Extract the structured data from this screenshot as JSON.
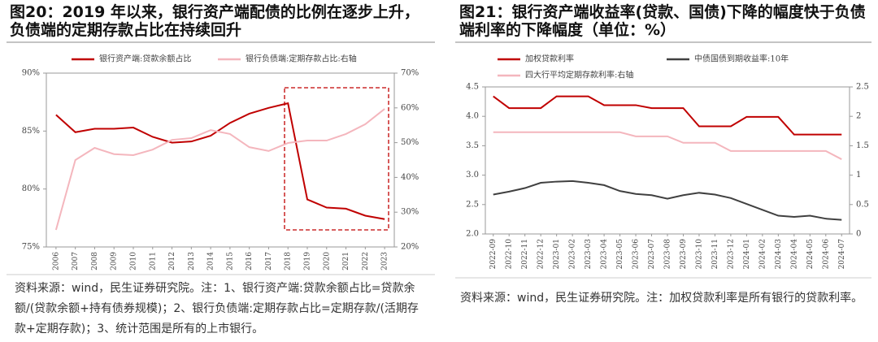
{
  "chart_data": [
    {
      "type": "line",
      "title": "图20：2019 年以来，银行资产端配债的比例在逐步上升，负债端的定期存款占比在持续回升",
      "source": "资料来源：wind，民生证券研究院。注：1、银行资产端:贷款余额占比=贷款余额/(贷款余额+持有债券规模)；2、银行负债端:定期存款占比=定期存款/(活期存款+定期存款)；3、统计范围是所有的上市银行。",
      "categories": [
        "2006",
        "2007",
        "2008",
        "2009",
        "2010",
        "2011",
        "2012",
        "2013",
        "2014",
        "2015",
        "2016",
        "2017",
        "2018",
        "2019",
        "2020",
        "2021",
        "2022",
        "2023"
      ],
      "series": [
        {
          "name": "银行资产端:贷款余额占比",
          "color": "#c00000",
          "values": [
            86.4,
            84.9,
            85.2,
            85.2,
            85.3,
            84.5,
            84.0,
            84.1,
            84.6,
            85.7,
            86.5,
            87.0,
            87.4,
            79.1,
            78.4,
            78.3,
            77.7,
            77.4
          ]
        },
        {
          "name": "银行负债端:定期存款占比:右轴",
          "color": "#f4b6bd",
          "axis": "y2",
          "values": [
            24.9,
            45.0,
            48.5,
            46.7,
            46.4,
            48.0,
            50.8,
            51.3,
            53.6,
            52.5,
            48.7,
            47.6,
            49.9,
            50.6,
            50.6,
            52.5,
            55.3,
            59.7
          ]
        }
      ],
      "ylim": [
        75,
        90
      ],
      "yticks": [
        {
          "value": 75,
          "label": "75%"
        },
        {
          "value": 80,
          "label": "80%"
        },
        {
          "value": 85,
          "label": "85%"
        },
        {
          "value": 90,
          "label": "90%"
        }
      ],
      "y2lim": [
        20,
        70
      ],
      "y2ticks": [
        {
          "value": 20,
          "label": "20%"
        },
        {
          "value": 30,
          "label": "30%"
        },
        {
          "value": 40,
          "label": "40%"
        },
        {
          "value": 50,
          "label": "50%"
        },
        {
          "value": 60,
          "label": "60%"
        },
        {
          "value": 70,
          "label": "70%"
        }
      ],
      "legend": "top"
    },
    {
      "type": "line",
      "title": "图21：银行资产端收益率(贷款、国债)下降的幅度快于负债端利率的下降幅度（单位：%）",
      "source": "资料来源：wind，民生证券研究院。注：加权贷款利率是所有银行的贷款利率。",
      "categories": [
        "2022-09",
        "2022-10",
        "2022-11",
        "2022-12",
        "2023-01",
        "2023-02",
        "2023-03",
        "2023-04",
        "2023-05",
        "2023-06",
        "2023-07",
        "2023-08",
        "2023-09",
        "2023-10",
        "2023-11",
        "2023-12",
        "2024-01",
        "2024-02",
        "2024-03",
        "2024-04",
        "2024-05",
        "2024-06",
        "2024-07"
      ],
      "series": [
        {
          "name": "加权贷款利率",
          "color": "#c00000",
          "values": [
            4.34,
            4.14,
            4.14,
            4.14,
            4.34,
            4.34,
            4.34,
            4.19,
            4.19,
            4.19,
            4.14,
            4.14,
            4.14,
            3.83,
            3.83,
            3.83,
            3.99,
            3.99,
            3.99,
            3.69,
            3.69,
            3.69,
            3.69
          ]
        },
        {
          "name": "中债国债到期收益率:10年",
          "color": "#404040",
          "values": [
            2.67,
            2.72,
            2.78,
            2.87,
            2.89,
            2.9,
            2.87,
            2.83,
            2.73,
            2.68,
            2.66,
            2.6,
            2.66,
            2.7,
            2.67,
            2.61,
            2.51,
            2.41,
            2.31,
            2.29,
            2.31,
            2.26,
            2.24
          ]
        },
        {
          "name": "四大行平均定期存款利率:右轴",
          "color": "#f4b6bd",
          "axis": "y2",
          "values": [
            1.73,
            1.73,
            1.73,
            1.73,
            1.73,
            1.73,
            1.73,
            1.73,
            1.73,
            1.66,
            1.66,
            1.66,
            1.55,
            1.55,
            1.55,
            1.41,
            1.41,
            1.41,
            1.41,
            1.41,
            1.41,
            1.41,
            1.27
          ]
        }
      ],
      "ylim": [
        2.0,
        4.5
      ],
      "yticks": [
        {
          "value": 2.0,
          "label": "2.0"
        },
        2.5,
        {
          "value": 3.0,
          "label": "3.0"
        },
        3.5,
        {
          "value": 4.0,
          "label": "4.0"
        },
        4.5
      ],
      "y2lim": [
        0,
        2.5
      ],
      "y2ticks": [
        0,
        0.5,
        1,
        1.5,
        2,
        2.5
      ],
      "legend": "top"
    }
  ]
}
